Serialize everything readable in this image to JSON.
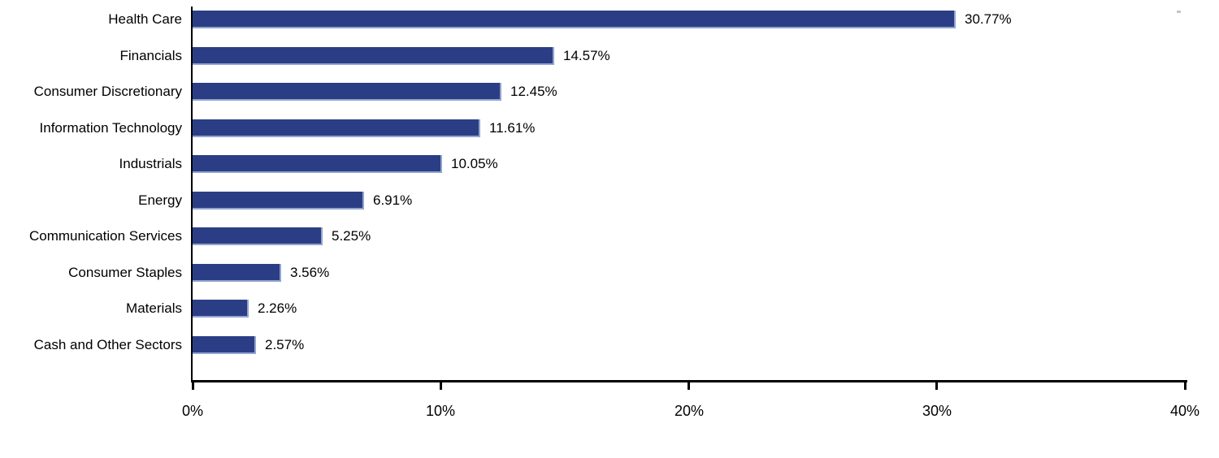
{
  "chart_data": {
    "type": "bar",
    "orientation": "horizontal",
    "title": "",
    "xlabel": "",
    "ylabel": "",
    "categories": [
      "Health Care",
      "Financials",
      "Consumer Discretionary",
      "Information Technology",
      "Industrials",
      "Energy",
      "Communication Services",
      "Consumer Staples",
      "Materials",
      "Cash and Other Sectors"
    ],
    "values": [
      30.77,
      14.57,
      12.45,
      11.61,
      10.05,
      6.91,
      5.25,
      3.56,
      2.26,
      2.57
    ],
    "value_labels": [
      "30.77%",
      "14.57%",
      "12.45%",
      "11.61%",
      "10.05%",
      "6.91%",
      "5.25%",
      "3.56%",
      "2.26%",
      "2.57%"
    ],
    "xlim": [
      0,
      40
    ],
    "x_ticks": [
      "0%",
      "10%",
      "20%",
      "30%",
      "40%"
    ],
    "grid": false,
    "legend": "none",
    "bar_color": "#2B3E85",
    "bar_edge_color": "#93A4CF",
    "axis_color": "#000000",
    "text_color": "#000000"
  }
}
